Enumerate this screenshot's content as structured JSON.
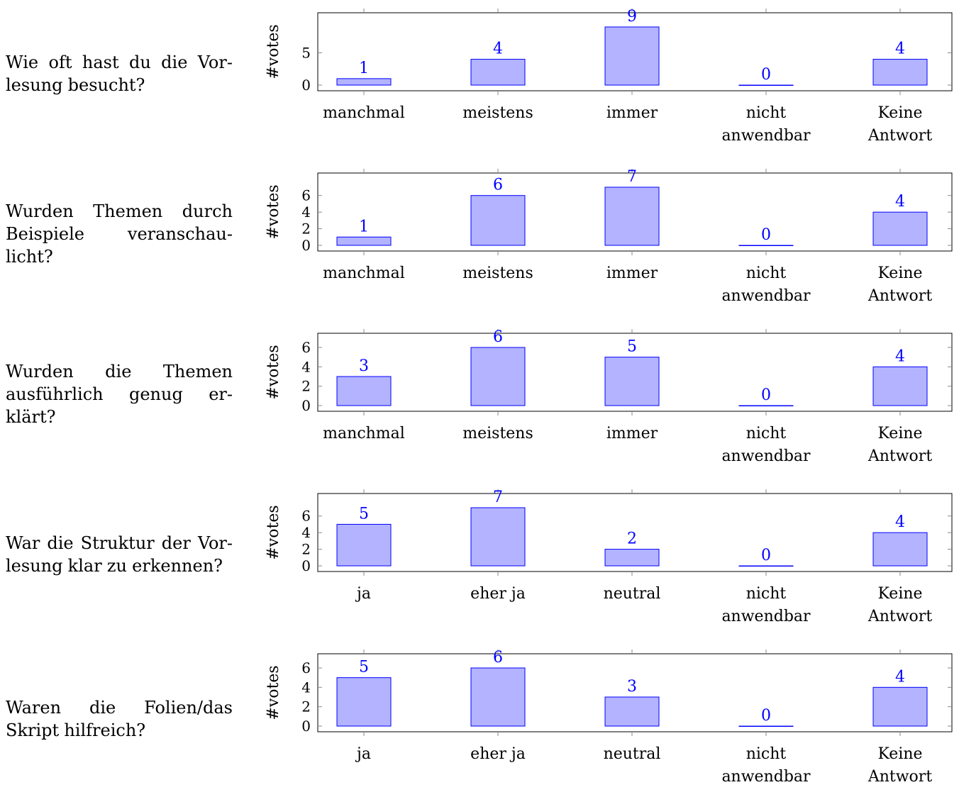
{
  "chart_data": [
    {
      "type": "bar",
      "question_lines": [
        [
          "Wie",
          "oft",
          "hast",
          "du",
          "die",
          "Vor-"
        ],
        [
          "lesung",
          "besucht?"
        ]
      ],
      "ylabel": "#votes",
      "categories": [
        [
          "manchmal"
        ],
        [
          "meistens"
        ],
        [
          "immer"
        ],
        [
          "nicht",
          "anwendbar"
        ],
        [
          "Keine",
          "Antwort"
        ]
      ],
      "values": [
        1,
        4,
        9,
        0,
        4
      ],
      "ylim": [
        0,
        9
      ],
      "yticks": [
        0,
        5
      ],
      "bar_color": "#b3b3ff",
      "bar_edge": "#0000ff",
      "label_color": "#0000ff"
    },
    {
      "type": "bar",
      "question_lines": [
        [
          "Wurden",
          "Themen",
          "durch"
        ],
        [
          "Beispiele",
          "veranschau-"
        ],
        [
          "licht?"
        ]
      ],
      "ylabel": "#votes",
      "categories": [
        [
          "manchmal"
        ],
        [
          "meistens"
        ],
        [
          "immer"
        ],
        [
          "nicht",
          "anwendbar"
        ],
        [
          "Keine",
          "Antwort"
        ]
      ],
      "values": [
        1,
        6,
        7,
        0,
        4
      ],
      "ylim": [
        0,
        7
      ],
      "yticks": [
        0,
        2,
        4,
        6
      ],
      "bar_color": "#b3b3ff",
      "bar_edge": "#0000ff",
      "label_color": "#0000ff"
    },
    {
      "type": "bar",
      "question_lines": [
        [
          "Wurden",
          "die",
          "Themen"
        ],
        [
          "ausführlich",
          "genug",
          "er-"
        ],
        [
          "klärt?"
        ]
      ],
      "ylabel": "#votes",
      "categories": [
        [
          "manchmal"
        ],
        [
          "meistens"
        ],
        [
          "immer"
        ],
        [
          "nicht",
          "anwendbar"
        ],
        [
          "Keine",
          "Antwort"
        ]
      ],
      "values": [
        3,
        6,
        5,
        0,
        4
      ],
      "ylim": [
        0,
        6
      ],
      "yticks": [
        0,
        2,
        4,
        6
      ],
      "bar_color": "#b3b3ff",
      "bar_edge": "#0000ff",
      "label_color": "#0000ff"
    },
    {
      "type": "bar",
      "question_lines": [
        [
          "War",
          "die",
          "Struktur",
          "der",
          "Vor-"
        ],
        [
          "lesung",
          "klar",
          "zu",
          "erkennen?"
        ]
      ],
      "ylabel": "#votes",
      "categories": [
        [
          "ja"
        ],
        [
          "eher ja"
        ],
        [
          "neutral"
        ],
        [
          "nicht",
          "anwendbar"
        ],
        [
          "Keine",
          "Antwort"
        ]
      ],
      "values": [
        5,
        7,
        2,
        0,
        4
      ],
      "ylim": [
        0,
        7
      ],
      "yticks": [
        0,
        2,
        4,
        6
      ],
      "bar_color": "#b3b3ff",
      "bar_edge": "#0000ff",
      "label_color": "#0000ff"
    },
    {
      "type": "bar",
      "question_lines": [
        [
          "Waren",
          "die",
          "Folien/das"
        ],
        [
          "Skript",
          "hilfreich?"
        ]
      ],
      "ylabel": "#votes",
      "categories": [
        [
          "ja"
        ],
        [
          "eher ja"
        ],
        [
          "neutral"
        ],
        [
          "nicht",
          "anwendbar"
        ],
        [
          "Keine",
          "Antwort"
        ]
      ],
      "values": [
        5,
        6,
        3,
        0,
        4
      ],
      "ylim": [
        0,
        6
      ],
      "yticks": [
        0,
        2,
        4,
        6
      ],
      "bar_color": "#b3b3ff",
      "bar_edge": "#0000ff",
      "label_color": "#0000ff"
    }
  ]
}
